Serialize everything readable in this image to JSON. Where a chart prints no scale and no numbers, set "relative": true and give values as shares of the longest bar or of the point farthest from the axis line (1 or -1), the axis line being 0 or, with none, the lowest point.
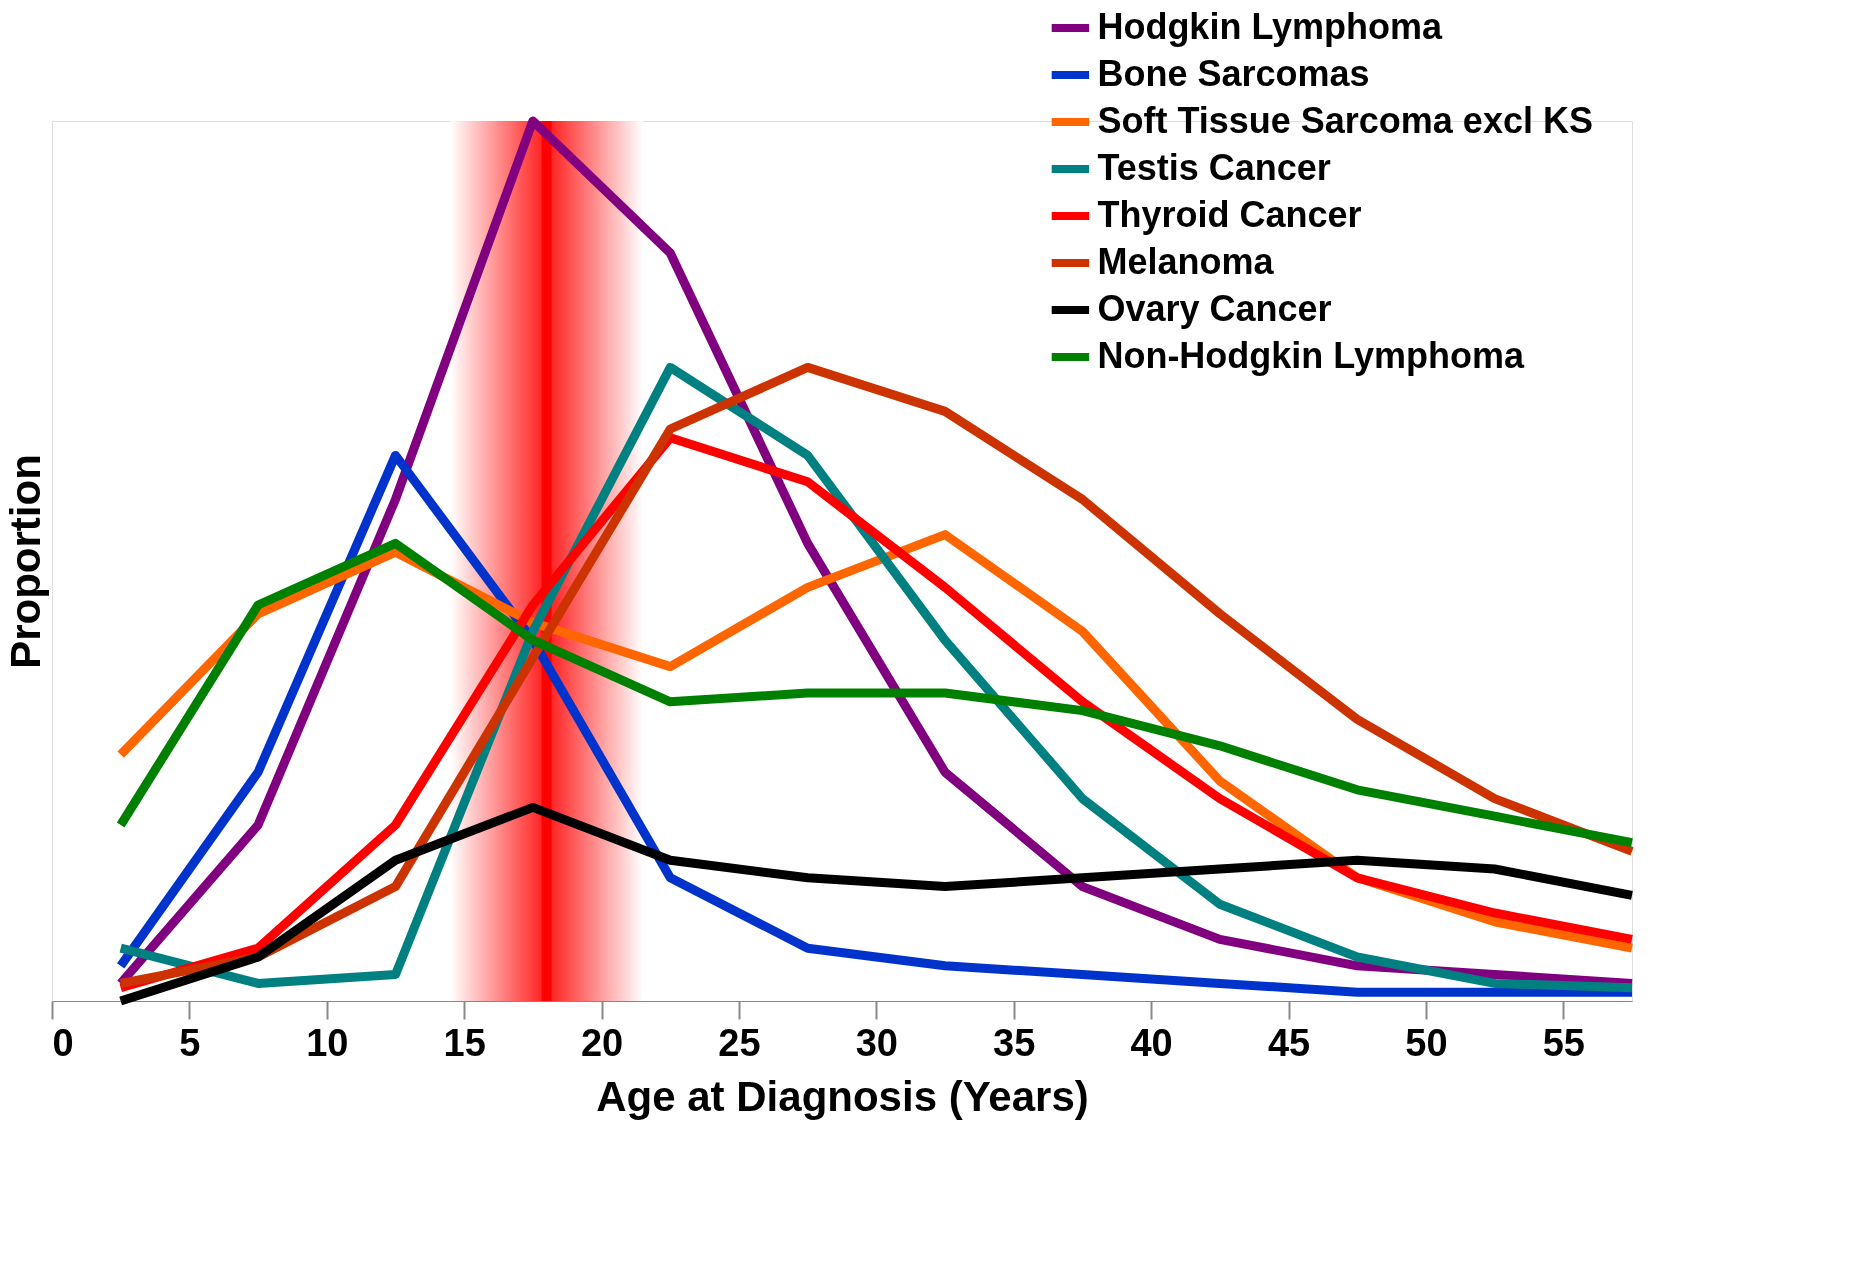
{
  "chart_data": {
    "type": "line",
    "relative": true,
    "xlabel": "Age at Diagnosis (Years)",
    "ylabel": "Proportion",
    "x": [
      2.5,
      7.5,
      12.5,
      17.5,
      22.5,
      27.5,
      32.5,
      37.5,
      42.5,
      47.5,
      52.5,
      57.5
    ],
    "xlim": [
      0,
      57.5
    ],
    "xticks": [
      0,
      5,
      10,
      15,
      20,
      25,
      30,
      35,
      40,
      45,
      50,
      55
    ],
    "grid": false,
    "legend": "top right",
    "marker": "none",
    "line_style": "solid",
    "bands": [
      {
        "axis": "x",
        "from": 14.5,
        "to": 21.5,
        "color": "#ff0000"
      }
    ],
    "ref_lines": [
      {
        "axis": "x",
        "value": 18,
        "color": "#ff0000"
      }
    ],
    "series": [
      {
        "name": "Hodgkin Lymphoma",
        "color": "#800080",
        "values": [
          0.02,
          0.2,
          0.57,
          1,
          0.85,
          0.52,
          0.26,
          0.13,
          0.07,
          0.04,
          0.03,
          0.02
        ]
      },
      {
        "name": "Bone Sarcomas",
        "color": "#0033cc",
        "values": [
          0.04,
          0.26,
          0.62,
          0.41,
          0.14,
          0.06,
          0.04,
          0.03,
          0.02,
          0.01,
          0.01,
          0.01
        ]
      },
      {
        "name": "Soft Tissue Sarcoma excl KS",
        "color": "#ff6600",
        "values": [
          0.28,
          0.44,
          0.51,
          0.43,
          0.38,
          0.47,
          0.53,
          0.42,
          0.25,
          0.14,
          0.09,
          0.06
        ]
      },
      {
        "name": "Testis Cancer",
        "color": "#008080",
        "values": [
          0.06,
          0.02,
          0.03,
          0.42,
          0.72,
          0.62,
          0.41,
          0.23,
          0.11,
          0.05,
          0.02,
          0.015
        ]
      },
      {
        "name": "Thyroid Cancer",
        "color": "#ff0000",
        "values": [
          0.015,
          0.06,
          0.2,
          0.45,
          0.64,
          0.59,
          0.47,
          0.34,
          0.23,
          0.14,
          0.1,
          0.07
        ]
      },
      {
        "name": "Melanoma",
        "color": "#cc3300",
        "values": [
          0.02,
          0.05,
          0.13,
          0.39,
          0.65,
          0.72,
          0.67,
          0.57,
          0.44,
          0.32,
          0.23,
          0.17
        ]
      },
      {
        "name": "Ovary Cancer",
        "color": "#000000",
        "values": [
          0,
          0.05,
          0.16,
          0.22,
          0.16,
          0.14,
          0.13,
          0.14,
          0.15,
          0.16,
          0.15,
          0.12
        ]
      },
      {
        "name": "Non-Hodgkin Lymphoma",
        "color": "#008000",
        "values": [
          0.2,
          0.45,
          0.52,
          0.41,
          0.34,
          0.35,
          0.35,
          0.33,
          0.29,
          0.24,
          0.21,
          0.18
        ]
      }
    ]
  }
}
